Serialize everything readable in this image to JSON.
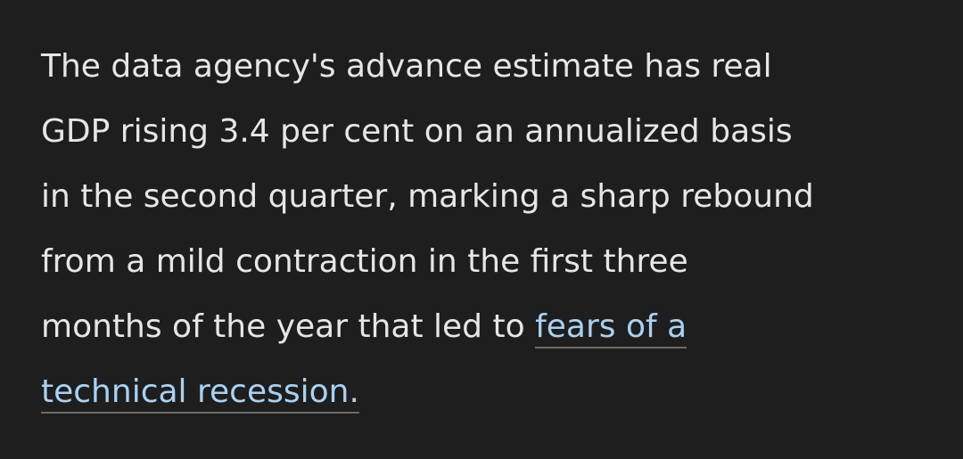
{
  "article": {
    "paragraph": {
      "lines": [
        "The data agency's advance estimate has real",
        "GDP rising 3.4 per cent on an annualized basis",
        "in the second quarter, marking a sharp rebound",
        "from a mild contraction in the first three",
        "months of the year that led to"
      ],
      "link": {
        "lines": [
          "fears of a",
          "technical recession."
        ]
      }
    }
  }
}
